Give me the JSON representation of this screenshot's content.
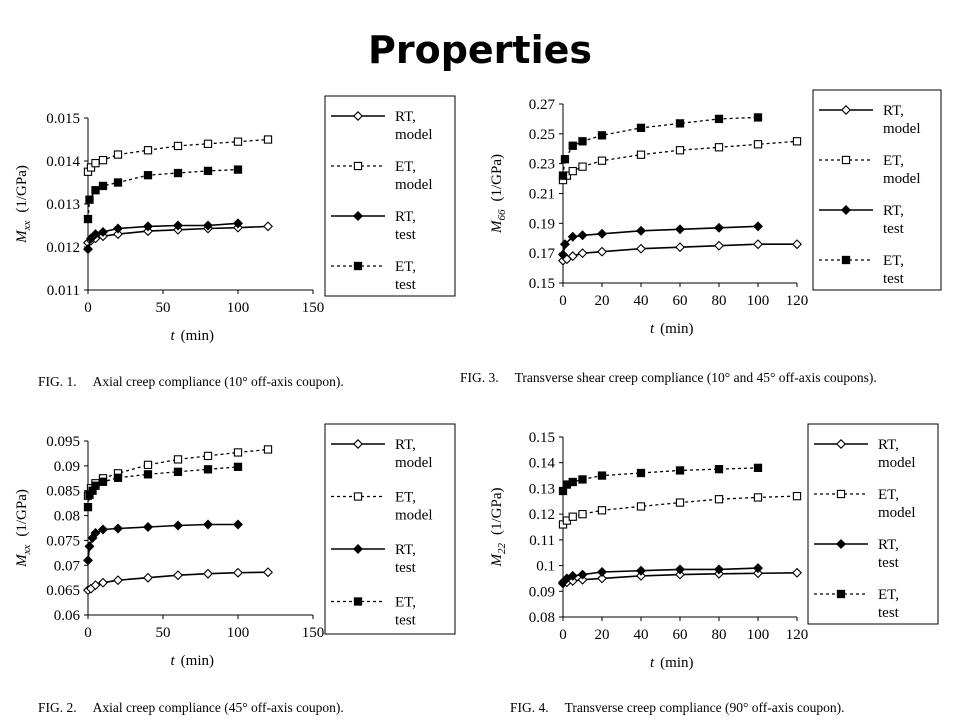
{
  "slide": {
    "title": "Properties"
  },
  "chart_data": [
    {
      "type": "line",
      "ylabel": "M",
      "ylabel_sub": "xx",
      "ylabel_unit": "(1/GPa)",
      "xlabel_var": "t",
      "xlabel_unit": "(min)",
      "xlim": [
        0,
        150
      ],
      "ylim": [
        0.011,
        0.015
      ],
      "xticks": [
        0,
        50,
        100,
        150
      ],
      "xtick_labels": [
        "0",
        "50",
        "100",
        "150"
      ],
      "yticks": [
        0.011,
        0.012,
        0.013,
        0.014,
        0.015
      ],
      "ytick_labels": [
        "0.011",
        "0.012",
        "0.013",
        "0.014",
        "0.015"
      ],
      "legend_position": "right",
      "caption_num": "FIG.  1.",
      "caption_text": "Axial creep compliance (10° off-axis coupon).",
      "series": [
        {
          "legend1": "RT,",
          "legend2": "model",
          "style": "solid",
          "marker": "diamond-open",
          "x": [
            0,
            2,
            5,
            10,
            20,
            40,
            60,
            80,
            100,
            120
          ],
          "y": [
            0.0121,
            0.01215,
            0.0122,
            0.01225,
            0.0123,
            0.01237,
            0.0124,
            0.01243,
            0.01245,
            0.01248
          ]
        },
        {
          "legend1": "ET,",
          "legend2": "model",
          "style": "dotted",
          "marker": "square-open",
          "x": [
            0,
            2,
            5,
            10,
            20,
            40,
            60,
            80,
            100,
            120
          ],
          "y": [
            0.01375,
            0.01385,
            0.01395,
            0.01402,
            0.01415,
            0.01425,
            0.01435,
            0.0144,
            0.01445,
            0.0145
          ]
        },
        {
          "legend1": "RT,",
          "legend2": "test",
          "style": "solid",
          "marker": "diamond-filled",
          "x": [
            0,
            2,
            5,
            10,
            20,
            40,
            60,
            80,
            100
          ],
          "y": [
            0.01195,
            0.0122,
            0.0123,
            0.01235,
            0.01243,
            0.01248,
            0.0125,
            0.0125,
            0.01255
          ]
        },
        {
          "legend1": "ET,",
          "legend2": "test",
          "style": "dotted",
          "marker": "square-filled",
          "x": [
            0,
            1,
            5,
            10,
            20,
            40,
            60,
            80,
            100
          ],
          "y": [
            0.01265,
            0.0131,
            0.01332,
            0.01342,
            0.0135,
            0.01367,
            0.01372,
            0.01377,
            0.0138
          ]
        }
      ]
    },
    {
      "type": "line",
      "ylabel": "M",
      "ylabel_sub": "xx",
      "ylabel_unit": "(1/GPa)",
      "xlabel_var": "t",
      "xlabel_unit": "(min)",
      "xlim": [
        0,
        150
      ],
      "ylim": [
        0.06,
        0.095
      ],
      "xticks": [
        0,
        50,
        100,
        150
      ],
      "xtick_labels": [
        "0",
        "50",
        "100",
        "150"
      ],
      "yticks": [
        0.06,
        0.065,
        0.07,
        0.075,
        0.08,
        0.085,
        0.09,
        0.095
      ],
      "ytick_labels": [
        "0.06",
        "0.065",
        "0.07",
        "0.075",
        "0.08",
        "0.085",
        "0.09",
        "0.095"
      ],
      "legend_position": "right",
      "caption_num": "FIG.  2.",
      "caption_text": "Axial creep compliance (45° off-axis coupon).",
      "series": [
        {
          "legend1": "RT,",
          "legend2": "model",
          "style": "solid",
          "marker": "diamond-open",
          "x": [
            0,
            2,
            5,
            10,
            20,
            40,
            60,
            80,
            100,
            120
          ],
          "y": [
            0.065,
            0.0653,
            0.066,
            0.0665,
            0.067,
            0.0675,
            0.068,
            0.0683,
            0.0685,
            0.0686
          ]
        },
        {
          "legend1": "ET,",
          "legend2": "model",
          "style": "dotted",
          "marker": "square-open",
          "x": [
            0,
            2,
            5,
            10,
            20,
            40,
            60,
            80,
            100,
            120
          ],
          "y": [
            0.084,
            0.0855,
            0.0865,
            0.0875,
            0.0885,
            0.0902,
            0.0913,
            0.092,
            0.0927,
            0.0933
          ]
        },
        {
          "legend1": "RT,",
          "legend2": "test",
          "style": "solid",
          "marker": "diamond-filled",
          "x": [
            0,
            1,
            3,
            5,
            10,
            20,
            40,
            60,
            80,
            100
          ],
          "y": [
            0.071,
            0.0738,
            0.0755,
            0.0765,
            0.0772,
            0.0774,
            0.0777,
            0.078,
            0.0782,
            0.0782
          ]
        },
        {
          "legend1": "ET,",
          "legend2": "test",
          "style": "dotted",
          "marker": "square-filled",
          "x": [
            0,
            1,
            3,
            5,
            10,
            20,
            40,
            60,
            80,
            100
          ],
          "y": [
            0.0817,
            0.0842,
            0.085,
            0.086,
            0.0868,
            0.0876,
            0.0883,
            0.0888,
            0.0893,
            0.0898
          ]
        }
      ]
    },
    {
      "type": "line",
      "ylabel": "M",
      "ylabel_sub": "66",
      "ylabel_unit": "(1/GPa)",
      "xlabel_var": "t",
      "xlabel_unit": "(min)",
      "xlim": [
        0,
        120
      ],
      "ylim": [
        0.15,
        0.27
      ],
      "xticks": [
        0,
        20,
        40,
        60,
        80,
        100,
        120
      ],
      "xtick_labels": [
        "0",
        "20",
        "40",
        "60",
        "80",
        "100",
        "120"
      ],
      "yticks": [
        0.15,
        0.17,
        0.19,
        0.21,
        0.23,
        0.25,
        0.27
      ],
      "ytick_labels": [
        "0.15",
        "0.17",
        "0.19",
        "0.21",
        "0.23",
        "0.25",
        "0.27"
      ],
      "legend_position": "right",
      "caption_num": "FIG.  3.",
      "caption_text": "Transverse shear creep compliance (10° and 45° off-axis coupons).",
      "series": [
        {
          "legend1": "RT,",
          "legend2": "model",
          "style": "solid",
          "marker": "diamond-open",
          "x": [
            0,
            2,
            5,
            10,
            20,
            40,
            60,
            80,
            100,
            120
          ],
          "y": [
            0.165,
            0.166,
            0.168,
            0.17,
            0.171,
            0.173,
            0.174,
            0.175,
            0.176,
            0.176
          ]
        },
        {
          "legend1": "ET,",
          "legend2": "model",
          "style": "dotted",
          "marker": "square-open",
          "x": [
            0,
            2,
            5,
            10,
            20,
            40,
            60,
            80,
            100,
            120
          ],
          "y": [
            0.219,
            0.222,
            0.225,
            0.228,
            0.232,
            0.236,
            0.239,
            0.241,
            0.243,
            0.245
          ]
        },
        {
          "legend1": "RT,",
          "legend2": "test",
          "style": "solid",
          "marker": "diamond-filled",
          "x": [
            0,
            1,
            5,
            10,
            20,
            40,
            60,
            80,
            100
          ],
          "y": [
            0.169,
            0.176,
            0.181,
            0.182,
            0.183,
            0.185,
            0.186,
            0.187,
            0.188
          ]
        },
        {
          "legend1": "ET,",
          "legend2": "test",
          "style": "dotted",
          "marker": "square-filled",
          "x": [
            0,
            1,
            5,
            10,
            20,
            40,
            60,
            80,
            100
          ],
          "y": [
            0.222,
            0.233,
            0.242,
            0.245,
            0.249,
            0.254,
            0.257,
            0.26,
            0.261
          ]
        }
      ]
    },
    {
      "type": "line",
      "ylabel": "M",
      "ylabel_sub": "22",
      "ylabel_unit": "(1/GPa)",
      "xlabel_var": "t",
      "xlabel_unit": "(min)",
      "xlim": [
        0,
        120
      ],
      "ylim": [
        0.08,
        0.15
      ],
      "xticks": [
        0,
        20,
        40,
        60,
        80,
        100,
        120
      ],
      "xtick_labels": [
        "0",
        "20",
        "40",
        "60",
        "80",
        "100",
        "120"
      ],
      "yticks": [
        0.08,
        0.09,
        0.1,
        0.11,
        0.12,
        0.13,
        0.14,
        0.15
      ],
      "ytick_labels": [
        "0.08",
        "0.09",
        "0.1",
        "0.11",
        "0.12",
        "0.13",
        "0.14",
        "0.15"
      ],
      "legend_position": "right",
      "caption_num": "FIG.  4.",
      "caption_text": "Transverse creep compliance (90° off-axis coupon).",
      "series": [
        {
          "legend1": "RT,",
          "legend2": "model",
          "style": "solid",
          "marker": "diamond-open",
          "x": [
            0,
            2,
            5,
            10,
            20,
            40,
            60,
            80,
            100,
            120
          ],
          "y": [
            0.093,
            0.0935,
            0.094,
            0.0945,
            0.095,
            0.096,
            0.0965,
            0.0968,
            0.097,
            0.0972
          ]
        },
        {
          "legend1": "ET,",
          "legend2": "model",
          "style": "dotted",
          "marker": "square-open",
          "x": [
            0,
            2,
            5,
            10,
            20,
            40,
            60,
            80,
            100,
            120
          ],
          "y": [
            0.116,
            0.1175,
            0.119,
            0.12,
            0.1215,
            0.123,
            0.1245,
            0.1258,
            0.1265,
            0.127
          ]
        },
        {
          "legend1": "RT,",
          "legend2": "test",
          "style": "solid",
          "marker": "diamond-filled",
          "x": [
            0,
            2,
            5,
            10,
            20,
            40,
            60,
            80,
            100
          ],
          "y": [
            0.0935,
            0.095,
            0.096,
            0.0965,
            0.0975,
            0.098,
            0.0985,
            0.0985,
            0.099
          ]
        },
        {
          "legend1": "ET,",
          "legend2": "test",
          "style": "dotted",
          "marker": "square-filled",
          "x": [
            0,
            2,
            5,
            10,
            20,
            40,
            60,
            80,
            100
          ],
          "y": [
            0.129,
            0.1315,
            0.1325,
            0.1335,
            0.135,
            0.136,
            0.137,
            0.1375,
            0.138
          ]
        }
      ]
    }
  ]
}
